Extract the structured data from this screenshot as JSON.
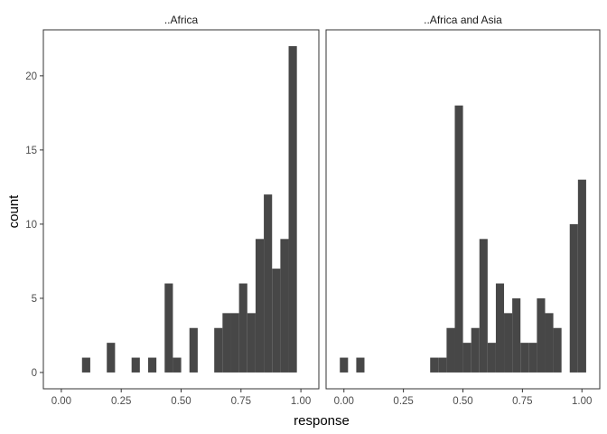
{
  "chart_data": {
    "type": "bar",
    "subtype": "histogram-faceted",
    "xlabel": "response",
    "ylabel": "count",
    "x_range": [
      -0.075,
      1.075
    ],
    "y_range": [
      -1.1,
      23.1
    ],
    "x_ticks": [
      0,
      0.25,
      0.5,
      0.75,
      1
    ],
    "x_tick_labels": [
      "0.00",
      "0.25",
      "0.50",
      "0.75",
      "1.00"
    ],
    "y_ticks": [
      0,
      5,
      10,
      15,
      20
    ],
    "y_tick_labels": [
      "0",
      "5",
      "10",
      "15",
      "20"
    ],
    "bin_width": 0.0345,
    "bin_start": -0.0172,
    "grid": false,
    "bar_color": "#474747",
    "panels": [
      {
        "label": "..Africa",
        "bin_counts": [
          0,
          0,
          0,
          1,
          0,
          0,
          2,
          0,
          0,
          1,
          0,
          1,
          0,
          6,
          1,
          0,
          3,
          0,
          0,
          3,
          4,
          4,
          6,
          4,
          9,
          12,
          7,
          9,
          22,
          0
        ]
      },
      {
        "label": "..Africa and Asia",
        "bin_counts": [
          1,
          0,
          1,
          0,
          0,
          0,
          0,
          0,
          0,
          0,
          0,
          1,
          1,
          3,
          18,
          2,
          3,
          9,
          2,
          6,
          4,
          5,
          2,
          2,
          5,
          4,
          3,
          0,
          10,
          13
        ]
      }
    ]
  }
}
